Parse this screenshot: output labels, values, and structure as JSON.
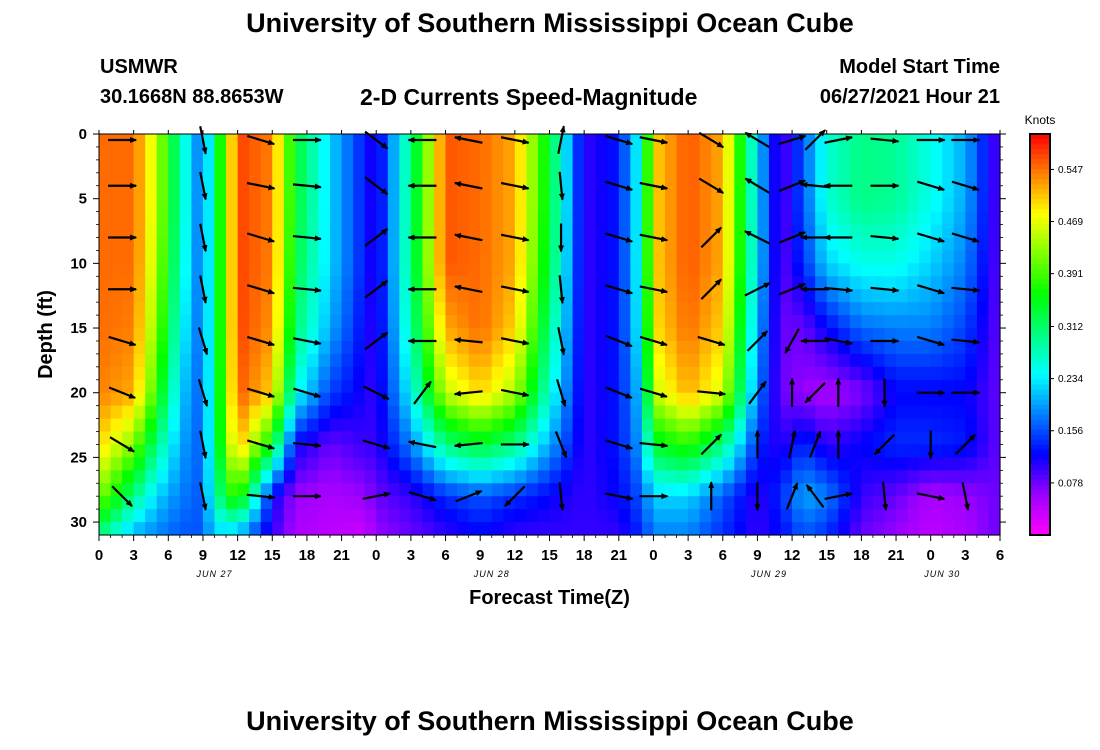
{
  "header": {
    "title": "University of Southern Mississippi Ocean Cube",
    "station": "USMWR",
    "coordinates": "30.1668N  88.8653W",
    "plot_title": "2-D Currents Speed-Magnitude",
    "model_start_label": "Model Start Time",
    "model_start_value": "06/27/2021 Hour 21"
  },
  "footer": {
    "title": "University of Southern Mississippi Ocean Cube"
  },
  "chart_data": {
    "type": "heatmap",
    "title": "2-D Currents Speed-Magnitude",
    "xlabel": "Forecast Time(Z)",
    "ylabel": "Depth (ft)",
    "x_ticks": [
      "0",
      "3",
      "6",
      "9",
      "12",
      "15",
      "18",
      "21",
      "0",
      "3",
      "6",
      "9",
      "12",
      "15",
      "18",
      "21",
      "0",
      "3",
      "6",
      "9",
      "12",
      "15",
      "18",
      "21",
      "0",
      "3",
      "6"
    ],
    "x_range_hours": [
      0,
      78
    ],
    "date_labels": [
      {
        "text": "JUN 27",
        "hour": 10
      },
      {
        "text": "JUN 28",
        "hour": 34
      },
      {
        "text": "JUN 29",
        "hour": 58
      },
      {
        "text": "JUN 30",
        "hour": 73
      }
    ],
    "y_ticks": [
      "0",
      "5",
      "10",
      "15",
      "20",
      "25",
      "30"
    ],
    "ylim_ft": [
      0,
      31
    ],
    "colorbar": {
      "label": "Knots",
      "ticks": [
        "0.547",
        "0.469",
        "0.391",
        "0.312",
        "0.234",
        "0.156",
        "0.078"
      ],
      "range_knots": [
        0,
        0.6
      ],
      "colors": [
        "#ff00ff",
        "#9b00ff",
        "#0000ff",
        "#0080ff",
        "#00ffff",
        "#00ff80",
        "#00ff00",
        "#80ff00",
        "#ffff00",
        "#ff8000",
        "#ff0000"
      ]
    },
    "speed_profile": {
      "description": "Approximate current speed (knots) at sampled times (hours) for depth bands 0, 5, 10, 15, 20, 24, 28, 31 ft",
      "depths_ft": [
        0,
        5,
        10,
        15,
        20,
        24,
        28,
        31
      ],
      "times_h": [
        0,
        3,
        5,
        7,
        9,
        10,
        12,
        15,
        17,
        20,
        23,
        24,
        27,
        30,
        33,
        36,
        39,
        42,
        45,
        47,
        48,
        51,
        54,
        57,
        59,
        61,
        63,
        66,
        69,
        72,
        75,
        78
      ],
      "speeds": [
        [
          0.55,
          0.55,
          0.45,
          0.28,
          0.16,
          0.3,
          0.57,
          0.54,
          0.34,
          0.22,
          0.13,
          0.1,
          0.3,
          0.56,
          0.55,
          0.52,
          0.34,
          0.1,
          0.13,
          0.26,
          0.5,
          0.56,
          0.52,
          0.22,
          0.08,
          0.16,
          0.26,
          0.3,
          0.29,
          0.25,
          0.2,
          0.08
        ],
        [
          0.55,
          0.55,
          0.45,
          0.28,
          0.16,
          0.3,
          0.57,
          0.54,
          0.34,
          0.22,
          0.13,
          0.1,
          0.3,
          0.56,
          0.55,
          0.52,
          0.34,
          0.1,
          0.13,
          0.26,
          0.5,
          0.56,
          0.52,
          0.22,
          0.08,
          0.16,
          0.26,
          0.3,
          0.29,
          0.25,
          0.2,
          0.08
        ],
        [
          0.55,
          0.55,
          0.44,
          0.27,
          0.16,
          0.3,
          0.57,
          0.54,
          0.33,
          0.22,
          0.13,
          0.1,
          0.3,
          0.56,
          0.55,
          0.52,
          0.33,
          0.1,
          0.13,
          0.26,
          0.5,
          0.56,
          0.52,
          0.22,
          0.08,
          0.14,
          0.22,
          0.25,
          0.25,
          0.22,
          0.18,
          0.08
        ],
        [
          0.55,
          0.54,
          0.42,
          0.25,
          0.16,
          0.3,
          0.57,
          0.53,
          0.31,
          0.2,
          0.12,
          0.1,
          0.28,
          0.52,
          0.55,
          0.5,
          0.3,
          0.1,
          0.13,
          0.25,
          0.49,
          0.55,
          0.5,
          0.2,
          0.08,
          0.08,
          0.12,
          0.17,
          0.18,
          0.18,
          0.15,
          0.08
        ],
        [
          0.54,
          0.52,
          0.38,
          0.22,
          0.16,
          0.3,
          0.56,
          0.5,
          0.25,
          0.15,
          0.11,
          0.1,
          0.24,
          0.45,
          0.5,
          0.44,
          0.26,
          0.1,
          0.13,
          0.22,
          0.45,
          0.52,
          0.46,
          0.18,
          0.08,
          0.06,
          0.05,
          0.07,
          0.12,
          0.12,
          0.12,
          0.08
        ],
        [
          0.5,
          0.42,
          0.3,
          0.2,
          0.16,
          0.3,
          0.52,
          0.35,
          0.12,
          0.08,
          0.1,
          0.1,
          0.18,
          0.3,
          0.34,
          0.3,
          0.2,
          0.1,
          0.13,
          0.2,
          0.34,
          0.38,
          0.3,
          0.14,
          0.1,
          0.14,
          0.1,
          0.12,
          0.14,
          0.14,
          0.13,
          0.08
        ],
        [
          0.42,
          0.3,
          0.22,
          0.18,
          0.16,
          0.28,
          0.4,
          0.12,
          0.06,
          0.05,
          0.06,
          0.08,
          0.1,
          0.14,
          0.16,
          0.14,
          0.12,
          0.1,
          0.12,
          0.16,
          0.22,
          0.22,
          0.16,
          0.1,
          0.14,
          0.2,
          0.18,
          0.1,
          0.08,
          0.05,
          0.06,
          0.08
        ],
        [
          0.3,
          0.2,
          0.18,
          0.16,
          0.16,
          0.22,
          0.2,
          0.1,
          0.05,
          0.04,
          0.03,
          0.06,
          0.08,
          0.1,
          0.12,
          0.1,
          0.1,
          0.1,
          0.1,
          0.14,
          0.18,
          0.18,
          0.14,
          0.1,
          0.12,
          0.16,
          0.14,
          0.08,
          0.06,
          0.04,
          0.05,
          0.08
        ]
      ]
    },
    "vectors": {
      "description": "Current direction arrows sampled every 3 hours at depths (ft); dx>0 east, dy>0 south in plot orientation (unitless direction)",
      "times_h": [
        2,
        9,
        14,
        18,
        24,
        28,
        32,
        36,
        40,
        45,
        48,
        53,
        57,
        60,
        62,
        64,
        68,
        72,
        75
      ],
      "depths_ft": [
        0,
        4,
        8,
        12,
        16,
        20,
        24,
        28
      ],
      "dirs": [
        [
          [
            1,
            0
          ],
          [
            0.2,
            1
          ],
          [
            1,
            0.3
          ],
          [
            1,
            0
          ],
          [
            0.8,
            0.6
          ],
          [
            -1,
            0
          ],
          [
            -1,
            -0.2
          ],
          [
            1,
            0.2
          ],
          [
            0.2,
            -1
          ],
          [
            1,
            0.3
          ],
          [
            1,
            0.2
          ],
          [
            1,
            0.6
          ],
          [
            -1,
            -0.6
          ],
          [
            1,
            -0.3
          ],
          [
            0.7,
            -0.7
          ],
          [
            1,
            -0.2
          ],
          [
            1,
            0.1
          ],
          [
            1,
            0
          ],
          [
            1,
            0
          ]
        ],
        [
          [
            1,
            0
          ],
          [
            0.2,
            1
          ],
          [
            1,
            0.2
          ],
          [
            1,
            0.1
          ],
          [
            0.8,
            0.6
          ],
          [
            -1,
            0
          ],
          [
            -1,
            -0.2
          ],
          [
            1,
            0.2
          ],
          [
            0.1,
            1
          ],
          [
            1,
            0.3
          ],
          [
            1,
            0.2
          ],
          [
            1,
            0.6
          ],
          [
            -1,
            -0.6
          ],
          [
            1,
            -0.4
          ],
          [
            -1,
            -0.1
          ],
          [
            -1,
            0
          ],
          [
            1,
            0
          ],
          [
            1,
            0.3
          ],
          [
            1,
            0.3
          ]
        ],
        [
          [
            1,
            0
          ],
          [
            0.2,
            1
          ],
          [
            1,
            0.3
          ],
          [
            1,
            0.1
          ],
          [
            0.8,
            -0.6
          ],
          [
            -1,
            0
          ],
          [
            -1,
            -0.2
          ],
          [
            1,
            0.2
          ],
          [
            0,
            1
          ],
          [
            1,
            0.3
          ],
          [
            1,
            0.2
          ],
          [
            0.7,
            -0.7
          ],
          [
            -1,
            -0.5
          ],
          [
            1,
            -0.4
          ],
          [
            -1,
            0
          ],
          [
            -1,
            0
          ],
          [
            1,
            0.1
          ],
          [
            1,
            0.3
          ],
          [
            1,
            0.3
          ]
        ],
        [
          [
            1,
            0
          ],
          [
            0.2,
            1
          ],
          [
            1,
            0.3
          ],
          [
            1,
            0.1
          ],
          [
            0.8,
            -0.6
          ],
          [
            -1,
            0
          ],
          [
            -1,
            -0.2
          ],
          [
            1,
            0.2
          ],
          [
            0.1,
            1
          ],
          [
            1,
            0.3
          ],
          [
            1,
            0.2
          ],
          [
            0.7,
            -0.7
          ],
          [
            1,
            -0.5
          ],
          [
            1,
            -0.4
          ],
          [
            -1,
            0
          ],
          [
            1,
            0.1
          ],
          [
            1,
            0.1
          ],
          [
            1,
            0.3
          ],
          [
            1,
            0.1
          ]
        ],
        [
          [
            1,
            0.3
          ],
          [
            0.3,
            1
          ],
          [
            1,
            0.3
          ],
          [
            1,
            0.2
          ],
          [
            0.8,
            -0.6
          ],
          [
            -1,
            0
          ],
          [
            -1,
            -0.1
          ],
          [
            1,
            0.2
          ],
          [
            0.2,
            1
          ],
          [
            1,
            0.4
          ],
          [
            1,
            0.3
          ],
          [
            1,
            0.3
          ],
          [
            0.7,
            -0.7
          ],
          [
            -0.5,
            0.9
          ],
          [
            -1,
            0
          ],
          [
            1,
            0.2
          ],
          [
            1,
            0
          ],
          [
            1,
            0.3
          ],
          [
            1,
            0.1
          ]
        ],
        [
          [
            1,
            0.4
          ],
          [
            0.3,
            1
          ],
          [
            1,
            0.3
          ],
          [
            1,
            0.3
          ],
          [
            1,
            0.5
          ],
          [
            0.6,
            -0.8
          ],
          [
            -1,
            0.1
          ],
          [
            1,
            0.2
          ],
          [
            0.3,
            1
          ],
          [
            1,
            0.4
          ],
          [
            1,
            0.3
          ],
          [
            1,
            0.1
          ],
          [
            0.6,
            -0.8
          ],
          [
            0,
            -1
          ],
          [
            -0.7,
            0.7
          ],
          [
            0,
            -1
          ],
          [
            0,
            1
          ],
          [
            1,
            0
          ],
          [
            1,
            0
          ]
        ],
        [
          [
            1,
            0.6
          ],
          [
            0.2,
            1
          ],
          [
            1,
            0.3
          ],
          [
            1,
            0.1
          ],
          [
            1,
            0.3
          ],
          [
            -1,
            -0.2
          ],
          [
            -1,
            0.1
          ],
          [
            1,
            0
          ],
          [
            0.4,
            1
          ],
          [
            1,
            0.3
          ],
          [
            1,
            0.1
          ],
          [
            0.7,
            -0.7
          ],
          [
            0,
            -1
          ],
          [
            0.2,
            -1
          ],
          [
            0.4,
            -1
          ],
          [
            0,
            -1
          ],
          [
            -0.7,
            0.7
          ],
          [
            0,
            1
          ],
          [
            0.7,
            -0.7
          ]
        ],
        [
          [
            0.7,
            0.7
          ],
          [
            0.2,
            1
          ],
          [
            1,
            0.1
          ],
          [
            1,
            0
          ],
          [
            1,
            -0.2
          ],
          [
            1,
            0.3
          ],
          [
            1,
            -0.4
          ],
          [
            -0.7,
            0.7
          ],
          [
            0.1,
            1
          ],
          [
            1,
            0.2
          ],
          [
            1,
            0
          ],
          [
            0,
            -1
          ],
          [
            0,
            1
          ],
          [
            0.4,
            -1
          ],
          [
            -0.6,
            -0.8
          ],
          [
            1,
            -0.2
          ],
          [
            0.1,
            1
          ],
          [
            1,
            0.2
          ],
          [
            0.2,
            1
          ]
        ]
      ]
    }
  }
}
